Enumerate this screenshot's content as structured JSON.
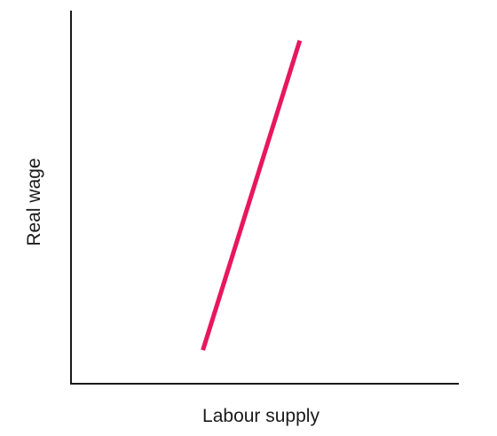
{
  "chart_data": {
    "type": "line",
    "title": "",
    "xlabel": "Labour supply",
    "ylabel": "Real wage",
    "xlim": [
      0,
      100
    ],
    "ylim": [
      0,
      100
    ],
    "grid": false,
    "legend": "none",
    "ticks": "none",
    "series": [
      {
        "color": "#e8175d",
        "points": [
          {
            "x": 34,
            "y": 9
          },
          {
            "x": 59,
            "y": 92
          }
        ]
      }
    ]
  }
}
